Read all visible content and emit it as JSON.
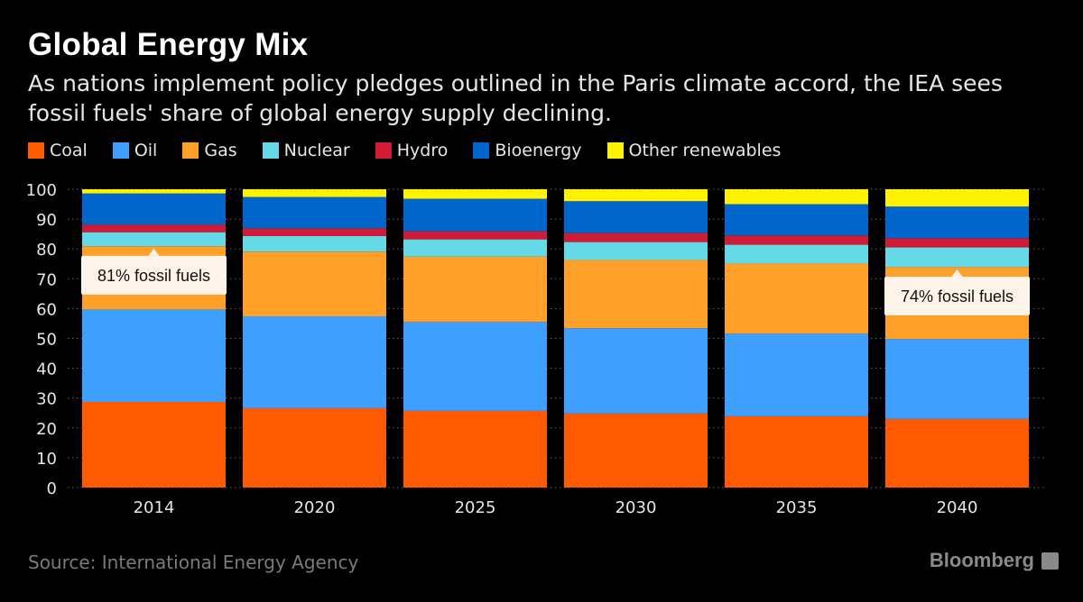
{
  "title": "Global Energy Mix",
  "subtitle": "As nations implement policy pledges outlined in the Paris climate accord, the IEA sees fossil fuels' share of global energy supply declining.",
  "source": "Source: International Energy Agency",
  "brand": "Bloomberg",
  "chart_data": {
    "type": "bar",
    "stacked": true,
    "categories": [
      "2014",
      "2020",
      "2025",
      "2030",
      "2035",
      "2040"
    ],
    "series": [
      {
        "name": "Coal",
        "color": "#ff5a00",
        "values": [
          28.7,
          26.6,
          25.7,
          24.8,
          23.9,
          23.0
        ]
      },
      {
        "name": "Oil",
        "color": "#3e9fff",
        "values": [
          31.0,
          30.8,
          29.8,
          28.6,
          27.7,
          26.8
        ]
      },
      {
        "name": "Gas",
        "color": "#ffa028",
        "values": [
          21.2,
          21.7,
          21.9,
          22.9,
          23.5,
          24.1
        ]
      },
      {
        "name": "Nuclear",
        "color": "#66d9e6",
        "values": [
          4.7,
          5.2,
          5.8,
          6.0,
          6.3,
          6.6
        ]
      },
      {
        "name": "Hydro",
        "color": "#d11a35",
        "values": [
          2.5,
          2.6,
          2.7,
          3.0,
          3.1,
          3.1
        ]
      },
      {
        "name": "Bioenergy",
        "color": "#0066cc",
        "values": [
          10.5,
          10.5,
          10.9,
          10.7,
          10.5,
          10.6
        ]
      },
      {
        "name": "Other renewables",
        "color": "#fff200",
        "values": [
          1.4,
          2.6,
          3.2,
          4.0,
          5.0,
          5.8
        ]
      }
    ],
    "ylim": [
      0,
      100
    ],
    "yticks": [
      0,
      10,
      20,
      30,
      40,
      50,
      60,
      70,
      80,
      90,
      100
    ],
    "grid": true,
    "legend_position": "top-left",
    "annotations": [
      {
        "category": "2014",
        "value": 81,
        "text": "81% fossil fuels"
      },
      {
        "category": "2040",
        "value": 74,
        "text": "74% fossil fuels"
      }
    ]
  }
}
